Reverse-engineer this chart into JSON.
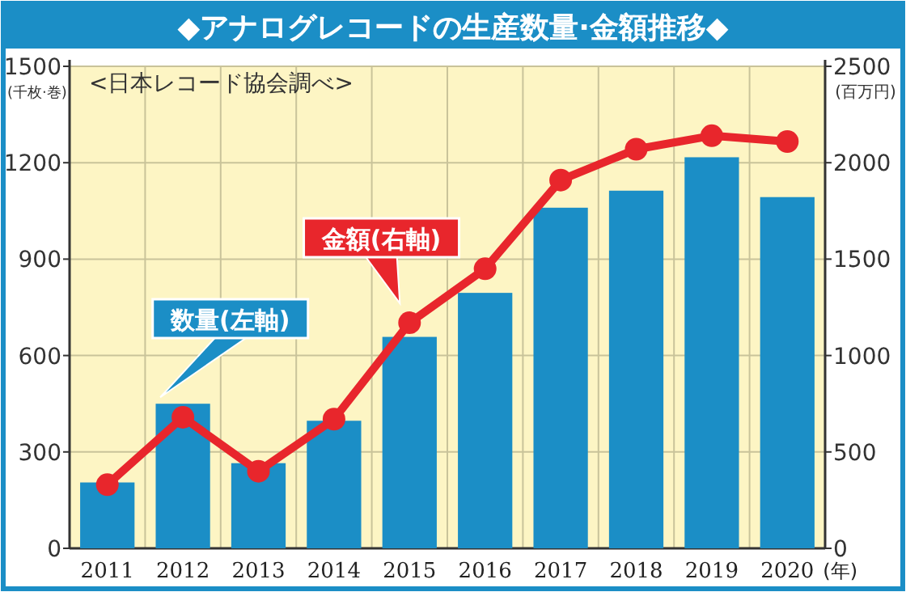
{
  "chart_data": {
    "type": "bar",
    "title": "◆アナログレコードの生産数量·金額推移◆",
    "ylabel": "(千枚·巻)",
    "y2label": "(百万円)",
    "xlabel": "(年)",
    "categories": [
      "2011",
      "2012",
      "2013",
      "2014",
      "2015",
      "2016",
      "2017",
      "2018",
      "2019",
      "2020"
    ],
    "series": [
      {
        "name": "数量(左軸)",
        "color": "#1b8ec6",
        "values": [
          205,
          450,
          265,
          397,
          658,
          795,
          1060,
          1113,
          1217,
          1093
        ]
      },
      {
        "name": "金額(右軸)",
        "type": "line",
        "axis": "y2",
        "color": "#e8262c",
        "marker": "circle",
        "values": [
          330,
          680,
          400,
          670,
          1170,
          1450,
          1910,
          2070,
          2140,
          2110
        ]
      }
    ],
    "ylim": [
      0,
      1500
    ],
    "yticks": [
      0,
      300,
      600,
      900,
      1200,
      1500
    ],
    "y2lim": [
      0,
      2500
    ],
    "y2ticks": [
      0,
      500,
      1000,
      1500,
      2000,
      2500
    ],
    "grid": true,
    "annotations": [
      "<日本レコード協会調べ>"
    ]
  }
}
